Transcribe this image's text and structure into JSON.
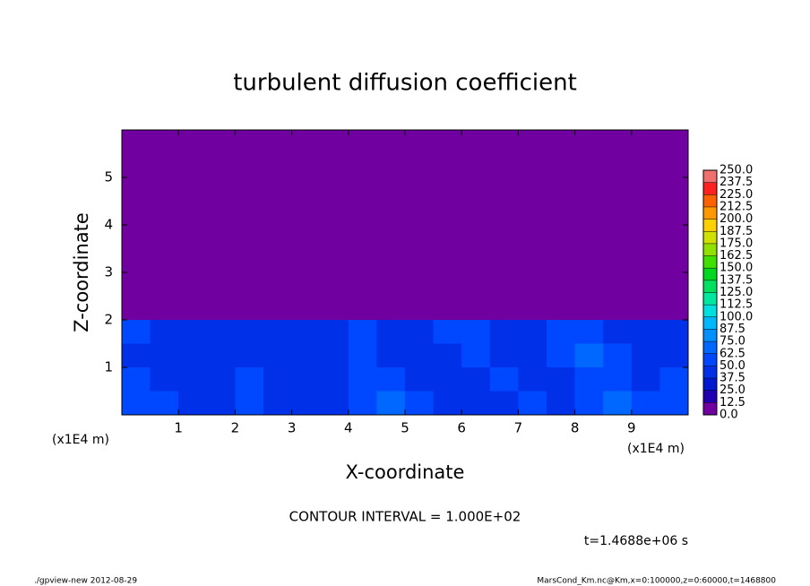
{
  "chart_data": {
    "type": "contour",
    "title": "turbulent diffusion coefficient",
    "x_label": "X-coordinate",
    "y_label": "Z-coordinate",
    "x_unit_labels": [
      "(x1E4 m)",
      "(x1E4 m)"
    ],
    "annotation": "CONTOUR INTERVAL = 1.000E+02",
    "time_label": "t=1.4688e+06 s",
    "footer_left": "./gpview-new  2012-08-29",
    "footer_right": "MarsCond_Km.nc@Km,x=0:100000,z=0:60000,t=1468800",
    "xlim": [
      0,
      10
    ],
    "ylim": [
      0,
      6
    ],
    "xticks": [
      1,
      2,
      3,
      4,
      5,
      6,
      7,
      8,
      9
    ],
    "yticks": [
      1,
      2,
      3,
      4,
      5
    ],
    "z": [
      [
        0,
        0,
        0,
        0,
        0,
        0,
        0,
        0,
        0,
        0,
        0,
        0,
        0,
        0,
        0,
        0,
        0,
        0,
        0,
        0
      ],
      [
        0,
        0,
        0,
        0,
        0,
        0,
        0,
        0,
        0,
        0,
        0,
        0,
        0,
        0,
        0,
        0,
        0,
        0,
        0,
        0
      ],
      [
        0,
        0,
        0,
        0,
        0,
        0,
        0,
        0,
        0,
        0,
        0,
        0,
        0,
        0,
        0,
        0,
        0,
        0,
        0,
        0
      ],
      [
        0,
        0,
        0,
        0,
        0,
        0,
        0,
        0,
        0,
        0,
        0,
        0,
        0,
        0,
        0,
        0,
        0,
        0,
        0,
        0
      ],
      [
        0,
        0,
        0,
        0,
        0,
        0,
        0,
        0,
        0,
        0,
        0,
        0,
        0,
        0,
        0,
        0,
        0,
        0,
        0,
        0
      ],
      [
        0,
        0,
        0,
        0,
        0,
        0,
        0,
        0,
        0,
        0,
        0,
        0,
        0,
        0,
        0,
        0,
        0,
        0,
        0,
        0
      ],
      [
        0,
        0,
        0,
        0,
        0,
        0,
        0,
        0,
        0,
        0,
        0,
        0,
        0,
        0,
        0,
        0,
        0,
        0,
        0,
        0
      ],
      [
        0,
        0,
        0,
        0,
        0,
        0,
        0,
        0,
        0,
        0,
        0,
        0,
        0,
        0,
        0,
        0,
        0,
        0,
        0,
        0
      ],
      [
        50,
        45,
        45,
        48,
        45,
        45,
        42,
        45,
        50,
        45,
        48,
        52,
        50,
        45,
        45,
        50,
        55,
        48,
        45,
        45
      ],
      [
        45,
        40,
        42,
        45,
        40,
        42,
        45,
        48,
        55,
        45,
        42,
        48,
        52,
        45,
        44,
        58,
        65,
        50,
        42,
        45
      ],
      [
        50,
        42,
        40,
        45,
        52,
        48,
        45,
        42,
        58,
        62,
        48,
        42,
        45,
        50,
        46,
        42,
        60,
        55,
        48,
        50
      ],
      [
        62,
        55,
        45,
        42,
        55,
        48,
        42,
        40,
        50,
        68,
        55,
        42,
        44,
        48,
        52,
        40,
        58,
        70,
        60,
        55
      ]
    ],
    "levels": [
      {
        "value": 0,
        "label": "0.0"
      },
      {
        "value": 12.5,
        "label": "12.5"
      },
      {
        "value": 25,
        "label": "25.0"
      },
      {
        "value": 37.5,
        "label": "37.5"
      },
      {
        "value": 50,
        "label": "50.0"
      },
      {
        "value": 62.5,
        "label": "62.5"
      },
      {
        "value": 75,
        "label": "75.0"
      },
      {
        "value": 87.5,
        "label": "87.5"
      },
      {
        "value": 100,
        "label": "100.0"
      },
      {
        "value": 112.5,
        "label": "112.5"
      },
      {
        "value": 125,
        "label": "125.0"
      },
      {
        "value": 137.5,
        "label": "137.5"
      },
      {
        "value": 150,
        "label": "150.0"
      },
      {
        "value": 162.5,
        "label": "162.5"
      },
      {
        "value": 175,
        "label": "175.0"
      },
      {
        "value": 187.5,
        "label": "187.5"
      },
      {
        "value": 200,
        "label": "200.0"
      },
      {
        "value": 212.5,
        "label": "212.5"
      },
      {
        "value": 225,
        "label": "225.0"
      },
      {
        "value": 237.5,
        "label": "237.5"
      },
      {
        "value": 250,
        "label": "250.0"
      }
    ],
    "colors": [
      "#7000a0",
      "#2000b0",
      "#0018d0",
      "#0030e8",
      "#0048ff",
      "#0068ff",
      "#0090ff",
      "#00b8ff",
      "#00e0e0",
      "#00e8a0",
      "#00e060",
      "#00d820",
      "#40e000",
      "#90e000",
      "#d0e000",
      "#ffd000",
      "#ff9800",
      "#ff6000",
      "#ff2020",
      "#f07070"
    ]
  }
}
